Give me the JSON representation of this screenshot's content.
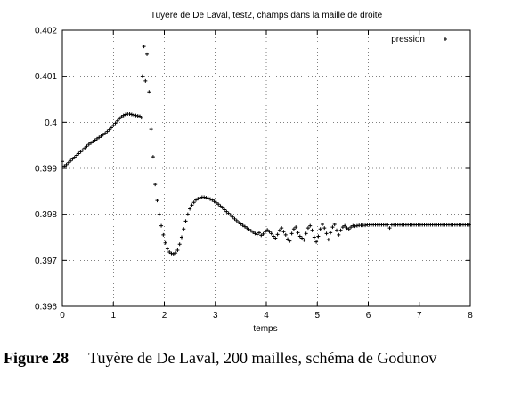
{
  "chart_data": {
    "type": "scatter",
    "title": "Tuyere de De Laval, test2, champs dans la maille de droite",
    "xlabel": "temps",
    "ylabel": "",
    "xlim": [
      0,
      8
    ],
    "ylim": [
      0.396,
      0.402
    ],
    "xticks": [
      "0",
      "1",
      "2",
      "3",
      "4",
      "5",
      "6",
      "7",
      "8"
    ],
    "yticks": [
      "0.396",
      "0.397",
      "0.398",
      "0.399",
      "0.4",
      "0.401",
      "0.402"
    ],
    "legend_position": "top-right",
    "grid": true,
    "series": [
      {
        "name": "pression",
        "marker": "+",
        "color": "#000000",
        "points": [
          [
            0.0,
            0.39915
          ],
          [
            0.04,
            0.39905
          ],
          [
            0.08,
            0.39908
          ],
          [
            0.12,
            0.39912
          ],
          [
            0.16,
            0.39916
          ],
          [
            0.2,
            0.3992
          ],
          [
            0.24,
            0.39924
          ],
          [
            0.28,
            0.39928
          ],
          [
            0.32,
            0.39932
          ],
          [
            0.36,
            0.39936
          ],
          [
            0.4,
            0.3994
          ],
          [
            0.44,
            0.39944
          ],
          [
            0.48,
            0.39948
          ],
          [
            0.52,
            0.39952
          ],
          [
            0.56,
            0.39955
          ],
          [
            0.6,
            0.39958
          ],
          [
            0.64,
            0.39961
          ],
          [
            0.68,
            0.39964
          ],
          [
            0.72,
            0.39967
          ],
          [
            0.76,
            0.3997
          ],
          [
            0.8,
            0.39973
          ],
          [
            0.84,
            0.39976
          ],
          [
            0.88,
            0.3998
          ],
          [
            0.92,
            0.39984
          ],
          [
            0.96,
            0.39988
          ],
          [
            1.0,
            0.39993
          ],
          [
            1.04,
            0.39998
          ],
          [
            1.08,
            0.40003
          ],
          [
            1.12,
            0.40008
          ],
          [
            1.16,
            0.40012
          ],
          [
            1.2,
            0.40015
          ],
          [
            1.24,
            0.40017
          ],
          [
            1.28,
            0.40018
          ],
          [
            1.32,
            0.40018
          ],
          [
            1.36,
            0.40017
          ],
          [
            1.4,
            0.40016
          ],
          [
            1.44,
            0.40015
          ],
          [
            1.48,
            0.40014
          ],
          [
            1.52,
            0.40013
          ],
          [
            1.55,
            0.4001
          ],
          [
            1.57,
            0.401
          ],
          [
            1.6,
            0.40165
          ],
          [
            1.63,
            0.4009
          ],
          [
            1.66,
            0.40148
          ],
          [
            1.7,
            0.40066
          ],
          [
            1.74,
            0.39985
          ],
          [
            1.78,
            0.39925
          ],
          [
            1.82,
            0.39865
          ],
          [
            1.86,
            0.3983
          ],
          [
            1.9,
            0.398
          ],
          [
            1.94,
            0.39775
          ],
          [
            1.98,
            0.39755
          ],
          [
            2.02,
            0.39738
          ],
          [
            2.06,
            0.39725
          ],
          [
            2.1,
            0.39718
          ],
          [
            2.14,
            0.39715
          ],
          [
            2.18,
            0.39714
          ],
          [
            2.22,
            0.39716
          ],
          [
            2.26,
            0.39722
          ],
          [
            2.3,
            0.39735
          ],
          [
            2.34,
            0.3975
          ],
          [
            2.38,
            0.39768
          ],
          [
            2.42,
            0.39785
          ],
          [
            2.46,
            0.398
          ],
          [
            2.5,
            0.39812
          ],
          [
            2.54,
            0.3982
          ],
          [
            2.58,
            0.39826
          ],
          [
            2.62,
            0.39831
          ],
          [
            2.66,
            0.39834
          ],
          [
            2.7,
            0.39836
          ],
          [
            2.74,
            0.39837
          ],
          [
            2.78,
            0.39837
          ],
          [
            2.82,
            0.39836
          ],
          [
            2.86,
            0.39835
          ],
          [
            2.9,
            0.39833
          ],
          [
            2.94,
            0.39831
          ],
          [
            2.98,
            0.39828
          ],
          [
            3.02,
            0.39825
          ],
          [
            3.06,
            0.39822
          ],
          [
            3.1,
            0.39818
          ],
          [
            3.14,
            0.39814
          ],
          [
            3.18,
            0.3981
          ],
          [
            3.22,
            0.39806
          ],
          [
            3.26,
            0.39802
          ],
          [
            3.3,
            0.39798
          ],
          [
            3.34,
            0.39794
          ],
          [
            3.38,
            0.3979
          ],
          [
            3.42,
            0.39786
          ],
          [
            3.46,
            0.39782
          ],
          [
            3.5,
            0.39779
          ],
          [
            3.54,
            0.39776
          ],
          [
            3.58,
            0.39773
          ],
          [
            3.62,
            0.3977
          ],
          [
            3.66,
            0.39767
          ],
          [
            3.7,
            0.39764
          ],
          [
            3.74,
            0.39761
          ],
          [
            3.78,
            0.39758
          ],
          [
            3.82,
            0.39756
          ],
          [
            3.86,
            0.3976
          ],
          [
            3.9,
            0.39754
          ],
          [
            3.94,
            0.39757
          ],
          [
            3.98,
            0.39762
          ],
          [
            4.02,
            0.39766
          ],
          [
            4.06,
            0.39762
          ],
          [
            4.1,
            0.39758
          ],
          [
            4.14,
            0.39752
          ],
          [
            4.18,
            0.39748
          ],
          [
            4.22,
            0.39756
          ],
          [
            4.26,
            0.39765
          ],
          [
            4.3,
            0.3977
          ],
          [
            4.34,
            0.39762
          ],
          [
            4.38,
            0.39755
          ],
          [
            4.42,
            0.39746
          ],
          [
            4.46,
            0.39742
          ],
          [
            4.5,
            0.39758
          ],
          [
            4.54,
            0.39768
          ],
          [
            4.58,
            0.39772
          ],
          [
            4.62,
            0.3976
          ],
          [
            4.66,
            0.39752
          ],
          [
            4.7,
            0.39748
          ],
          [
            4.74,
            0.39744
          ],
          [
            4.78,
            0.39758
          ],
          [
            4.82,
            0.3977
          ],
          [
            4.86,
            0.39775
          ],
          [
            4.9,
            0.39765
          ],
          [
            4.94,
            0.3975
          ],
          [
            4.98,
            0.3974
          ],
          [
            5.02,
            0.39752
          ],
          [
            5.06,
            0.39768
          ],
          [
            5.1,
            0.39778
          ],
          [
            5.14,
            0.3977
          ],
          [
            5.18,
            0.39758
          ],
          [
            5.22,
            0.39745
          ],
          [
            5.26,
            0.3976
          ],
          [
            5.3,
            0.39772
          ],
          [
            5.34,
            0.39778
          ],
          [
            5.38,
            0.39765
          ],
          [
            5.42,
            0.39755
          ],
          [
            5.46,
            0.39765
          ],
          [
            5.5,
            0.39772
          ],
          [
            5.54,
            0.39775
          ],
          [
            5.58,
            0.3977
          ],
          [
            5.62,
            0.39768
          ],
          [
            5.66,
            0.39772
          ],
          [
            5.7,
            0.39775
          ],
          [
            5.74,
            0.39774
          ],
          [
            5.78,
            0.39775
          ],
          [
            5.82,
            0.39776
          ],
          [
            5.86,
            0.39776
          ],
          [
            5.9,
            0.39776
          ],
          [
            5.94,
            0.39776
          ],
          [
            5.98,
            0.39777
          ],
          [
            6.02,
            0.39777
          ],
          [
            6.06,
            0.39777
          ],
          [
            6.1,
            0.39777
          ],
          [
            6.14,
            0.39777
          ],
          [
            6.18,
            0.39777
          ],
          [
            6.22,
            0.39777
          ],
          [
            6.26,
            0.39777
          ],
          [
            6.3,
            0.39777
          ],
          [
            6.34,
            0.39777
          ],
          [
            6.38,
            0.39777
          ],
          [
            6.42,
            0.3977
          ],
          [
            6.46,
            0.39777
          ],
          [
            6.5,
            0.39777
          ],
          [
            6.54,
            0.39777
          ],
          [
            6.58,
            0.39777
          ],
          [
            6.62,
            0.39777
          ],
          [
            6.66,
            0.39777
          ],
          [
            6.7,
            0.39777
          ],
          [
            6.74,
            0.39777
          ],
          [
            6.78,
            0.39777
          ],
          [
            6.82,
            0.39777
          ],
          [
            6.86,
            0.39777
          ],
          [
            6.9,
            0.39777
          ],
          [
            6.94,
            0.39777
          ],
          [
            6.98,
            0.39777
          ],
          [
            7.02,
            0.39777
          ],
          [
            7.06,
            0.39777
          ],
          [
            7.1,
            0.39777
          ],
          [
            7.14,
            0.39777
          ],
          [
            7.18,
            0.39777
          ],
          [
            7.22,
            0.39777
          ],
          [
            7.26,
            0.39777
          ],
          [
            7.3,
            0.39777
          ],
          [
            7.34,
            0.39777
          ],
          [
            7.38,
            0.39777
          ],
          [
            7.42,
            0.39777
          ],
          [
            7.46,
            0.39777
          ],
          [
            7.5,
            0.39777
          ],
          [
            7.54,
            0.39777
          ],
          [
            7.58,
            0.39777
          ],
          [
            7.62,
            0.39777
          ],
          [
            7.66,
            0.39777
          ],
          [
            7.7,
            0.39777
          ],
          [
            7.74,
            0.39777
          ],
          [
            7.78,
            0.39777
          ],
          [
            7.82,
            0.39777
          ],
          [
            7.86,
            0.39777
          ],
          [
            7.9,
            0.39777
          ],
          [
            7.94,
            0.39777
          ],
          [
            7.98,
            0.39777
          ]
        ]
      }
    ]
  },
  "caption": {
    "number": "Figure 28",
    "text": "Tuyère de De Laval, 200 mailles, schéma de Godunov"
  }
}
